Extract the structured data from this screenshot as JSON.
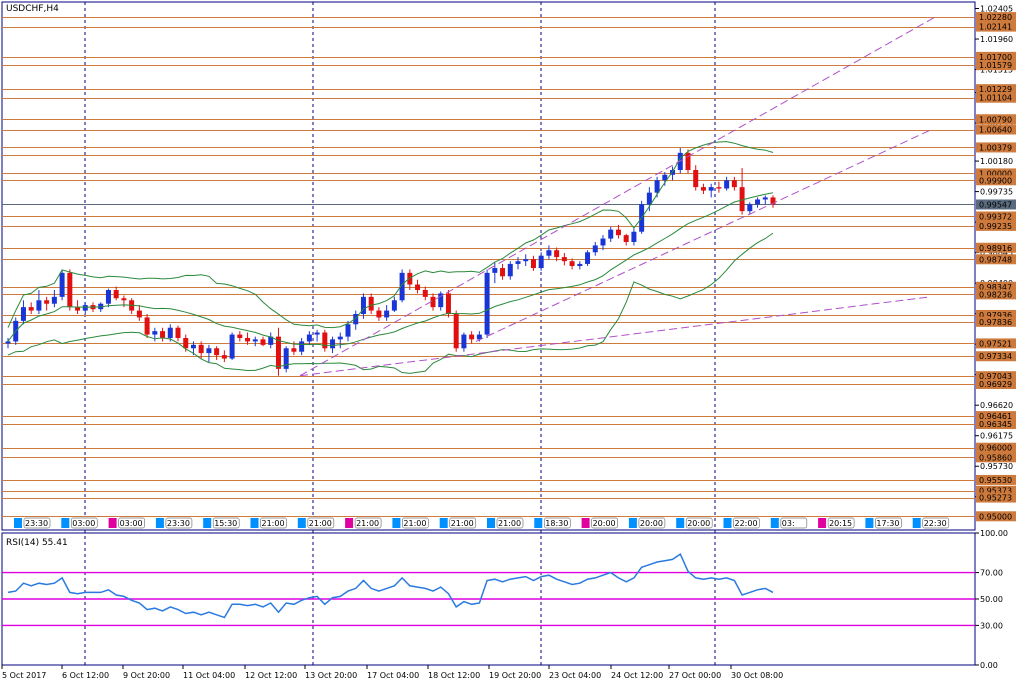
{
  "main_chart": {
    "title": "USDCHF,H4",
    "price_ticks": [
      "1.02405",
      "1.01960",
      "1.01515",
      "1.01180",
      "1.00735",
      "1.00180",
      "0.99735",
      "0.99290",
      "0.98845",
      "0.98400",
      "0.97955",
      "0.97510",
      "0.97065",
      "0.96620",
      "0.96175",
      "0.95730",
      "0.95285"
    ],
    "levels": [
      {
        "price": "1.02280",
        "tag": true
      },
      {
        "price": "1.02141",
        "tag": true
      },
      {
        "price": "1.01700",
        "tag": true
      },
      {
        "price": "1.01579",
        "tag": true
      },
      {
        "price": "1.01229",
        "tag": true
      },
      {
        "price": "1.01104",
        "tag": true
      },
      {
        "price": "1.00790",
        "tag": true
      },
      {
        "price": "1.00640",
        "tag": true
      },
      {
        "price": "1.00379",
        "tag": true
      },
      {
        "price": "1.00276",
        "tag": false
      },
      {
        "price": "1.00000",
        "tag": true
      },
      {
        "price": "0.99900",
        "tag": true
      },
      {
        "price": "0.99372",
        "tag": true
      },
      {
        "price": "0.99235",
        "tag": true
      },
      {
        "price": "0.98916",
        "tag": true
      },
      {
        "price": "0.98748",
        "tag": true
      },
      {
        "price": "0.98347",
        "tag": true
      },
      {
        "price": "0.98236",
        "tag": true
      },
      {
        "price": "0.97936",
        "tag": true
      },
      {
        "price": "0.97836",
        "tag": true
      },
      {
        "price": "0.97521",
        "tag": true
      },
      {
        "price": "0.97334",
        "tag": true
      },
      {
        "price": "0.97043",
        "tag": true
      },
      {
        "price": "0.96929",
        "tag": true
      },
      {
        "price": "0.96461",
        "tag": true
      },
      {
        "price": "0.96345",
        "tag": true
      },
      {
        "price": "0.96000",
        "tag": true
      },
      {
        "price": "0.95860",
        "tag": true
      },
      {
        "price": "0.95530",
        "tag": true
      },
      {
        "price": "0.95373",
        "tag": true
      },
      {
        "price": "0.95273",
        "tag": true
      },
      {
        "price": "0.95000",
        "tag": true
      }
    ],
    "current_price": "0.99547",
    "session_labels": [
      "23:30",
      "03:00",
      "03:00",
      "23:30",
      "15:30",
      "21:00",
      "21:00",
      "21:00",
      "21:00",
      "21:00",
      "21:00",
      "18:30",
      "20:00",
      "20:00",
      "20:00",
      "22:00",
      "03:",
      "20:15",
      "17:30",
      "22:30"
    ]
  },
  "rsi_panel": {
    "title": "RSI(14) 55.41",
    "ticks": [
      "100.00",
      "70.00",
      "50.00",
      "30.00",
      "0.00"
    ],
    "levels": [
      70,
      50,
      30
    ]
  },
  "x_axis": {
    "labels": [
      "5 Oct 2017",
      "6 Oct 12:00",
      "9 Oct 20:00",
      "11 Oct 04:00",
      "12 Oct 12:00",
      "13 Oct 20:00",
      "17 Oct 04:00",
      "18 Oct 12:00",
      "19 Oct 20:00",
      "23 Oct 04:00",
      "24 Oct 12:00",
      "27 Oct 00:00",
      "30 Oct 08:00"
    ]
  },
  "colors": {
    "bull": "#1a35d6",
    "bear": "#e01010",
    "level": "#cd7a3c",
    "tag": "#cd7a3c",
    "current": "#5a6a7e",
    "channel": "#b050c8",
    "band": "#2a8a3a",
    "rsi_line": "#2a7ae0",
    "rsi_level": "#e000e0",
    "axis": "#000080",
    "session_up": "#0090ff",
    "session_down": "#e000a0"
  },
  "chart_data": {
    "type": "candlestick",
    "symbol": "USDCHF",
    "timeframe": "H4",
    "ylim": [
      0.948,
      1.025
    ],
    "candles": [
      {
        "o": 0.9752,
        "h": 0.976,
        "l": 0.9745,
        "c": 0.9755
      },
      {
        "o": 0.9755,
        "h": 0.979,
        "l": 0.975,
        "c": 0.9785
      },
      {
        "o": 0.9785,
        "h": 0.9815,
        "l": 0.978,
        "c": 0.9805
      },
      {
        "o": 0.9805,
        "h": 0.9812,
        "l": 0.9795,
        "c": 0.98
      },
      {
        "o": 0.98,
        "h": 0.983,
        "l": 0.9795,
        "c": 0.9815
      },
      {
        "o": 0.9815,
        "h": 0.982,
        "l": 0.98,
        "c": 0.981
      },
      {
        "o": 0.981,
        "h": 0.983,
        "l": 0.9805,
        "c": 0.982
      },
      {
        "o": 0.982,
        "h": 0.986,
        "l": 0.9815,
        "c": 0.9855
      },
      {
        "o": 0.9855,
        "h": 0.986,
        "l": 0.98,
        "c": 0.9805
      },
      {
        "o": 0.9805,
        "h": 0.9815,
        "l": 0.9795,
        "c": 0.98
      },
      {
        "o": 0.98,
        "h": 0.9812,
        "l": 0.9795,
        "c": 0.9808
      },
      {
        "o": 0.9808,
        "h": 0.9812,
        "l": 0.9798,
        "c": 0.9802
      },
      {
        "o": 0.9802,
        "h": 0.9812,
        "l": 0.9798,
        "c": 0.981
      },
      {
        "o": 0.981,
        "h": 0.9832,
        "l": 0.9805,
        "c": 0.983
      },
      {
        "o": 0.983,
        "h": 0.9835,
        "l": 0.9815,
        "c": 0.9818
      },
      {
        "o": 0.9818,
        "h": 0.9822,
        "l": 0.9805,
        "c": 0.9815
      },
      {
        "o": 0.9815,
        "h": 0.9818,
        "l": 0.9795,
        "c": 0.98
      },
      {
        "o": 0.98,
        "h": 0.9808,
        "l": 0.9785,
        "c": 0.979
      },
      {
        "o": 0.979,
        "h": 0.9795,
        "l": 0.976,
        "c": 0.9765
      },
      {
        "o": 0.9765,
        "h": 0.9775,
        "l": 0.9755,
        "c": 0.977
      },
      {
        "o": 0.977,
        "h": 0.9775,
        "l": 0.9755,
        "c": 0.976
      },
      {
        "o": 0.976,
        "h": 0.978,
        "l": 0.9755,
        "c": 0.9775
      },
      {
        "o": 0.9775,
        "h": 0.9778,
        "l": 0.9755,
        "c": 0.976
      },
      {
        "o": 0.976,
        "h": 0.9765,
        "l": 0.974,
        "c": 0.9745
      },
      {
        "o": 0.9745,
        "h": 0.9755,
        "l": 0.9735,
        "c": 0.975
      },
      {
        "o": 0.975,
        "h": 0.9755,
        "l": 0.973,
        "c": 0.9738
      },
      {
        "o": 0.9738,
        "h": 0.975,
        "l": 0.9725,
        "c": 0.9745
      },
      {
        "o": 0.9745,
        "h": 0.9748,
        "l": 0.9728,
        "c": 0.9735
      },
      {
        "o": 0.9735,
        "h": 0.9742,
        "l": 0.9725,
        "c": 0.973
      },
      {
        "o": 0.973,
        "h": 0.9768,
        "l": 0.9728,
        "c": 0.9765
      },
      {
        "o": 0.9765,
        "h": 0.977,
        "l": 0.9755,
        "c": 0.976
      },
      {
        "o": 0.976,
        "h": 0.9768,
        "l": 0.975,
        "c": 0.9755
      },
      {
        "o": 0.9755,
        "h": 0.9762,
        "l": 0.9748,
        "c": 0.9758
      },
      {
        "o": 0.9758,
        "h": 0.9762,
        "l": 0.9748,
        "c": 0.975
      },
      {
        "o": 0.975,
        "h": 0.9768,
        "l": 0.9745,
        "c": 0.9762
      },
      {
        "o": 0.9762,
        "h": 0.9775,
        "l": 0.9705,
        "c": 0.9715
      },
      {
        "o": 0.9715,
        "h": 0.9748,
        "l": 0.971,
        "c": 0.9745
      },
      {
        "o": 0.9745,
        "h": 0.9755,
        "l": 0.9735,
        "c": 0.974
      },
      {
        "o": 0.974,
        "h": 0.976,
        "l": 0.9735,
        "c": 0.9755
      },
      {
        "o": 0.9755,
        "h": 0.977,
        "l": 0.975,
        "c": 0.9765
      },
      {
        "o": 0.9765,
        "h": 0.9772,
        "l": 0.9755,
        "c": 0.9768
      },
      {
        "o": 0.9768,
        "h": 0.9772,
        "l": 0.974,
        "c": 0.9745
      },
      {
        "o": 0.9745,
        "h": 0.9762,
        "l": 0.9738,
        "c": 0.9758
      },
      {
        "o": 0.9758,
        "h": 0.9768,
        "l": 0.9745,
        "c": 0.9762
      },
      {
        "o": 0.9762,
        "h": 0.9785,
        "l": 0.9755,
        "c": 0.978
      },
      {
        "o": 0.978,
        "h": 0.98,
        "l": 0.9772,
        "c": 0.9795
      },
      {
        "o": 0.9795,
        "h": 0.9825,
        "l": 0.9788,
        "c": 0.982
      },
      {
        "o": 0.982,
        "h": 0.9825,
        "l": 0.9795,
        "c": 0.98
      },
      {
        "o": 0.98,
        "h": 0.9805,
        "l": 0.9785,
        "c": 0.979
      },
      {
        "o": 0.979,
        "h": 0.9808,
        "l": 0.9785,
        "c": 0.98
      },
      {
        "o": 0.98,
        "h": 0.982,
        "l": 0.9798,
        "c": 0.9815
      },
      {
        "o": 0.9815,
        "h": 0.986,
        "l": 0.9812,
        "c": 0.9855
      },
      {
        "o": 0.9855,
        "h": 0.986,
        "l": 0.983,
        "c": 0.9838
      },
      {
        "o": 0.9838,
        "h": 0.9845,
        "l": 0.9825,
        "c": 0.983
      },
      {
        "o": 0.983,
        "h": 0.9835,
        "l": 0.9815,
        "c": 0.982
      },
      {
        "o": 0.982,
        "h": 0.9825,
        "l": 0.98,
        "c": 0.9805
      },
      {
        "o": 0.9805,
        "h": 0.9828,
        "l": 0.98,
        "c": 0.9825
      },
      {
        "o": 0.9825,
        "h": 0.983,
        "l": 0.979,
        "c": 0.9795
      },
      {
        "o": 0.9795,
        "h": 0.98,
        "l": 0.974,
        "c": 0.9745
      },
      {
        "o": 0.9745,
        "h": 0.9768,
        "l": 0.974,
        "c": 0.9765
      },
      {
        "o": 0.9765,
        "h": 0.977,
        "l": 0.9752,
        "c": 0.9758
      },
      {
        "o": 0.9758,
        "h": 0.977,
        "l": 0.9755,
        "c": 0.9765
      },
      {
        "o": 0.9765,
        "h": 0.986,
        "l": 0.976,
        "c": 0.9855
      },
      {
        "o": 0.9855,
        "h": 0.987,
        "l": 0.984,
        "c": 0.9862
      },
      {
        "o": 0.9862,
        "h": 0.9868,
        "l": 0.9845,
        "c": 0.985
      },
      {
        "o": 0.985,
        "h": 0.9872,
        "l": 0.9845,
        "c": 0.9868
      },
      {
        "o": 0.9868,
        "h": 0.9878,
        "l": 0.986,
        "c": 0.9872
      },
      {
        "o": 0.9872,
        "h": 0.9882,
        "l": 0.9865,
        "c": 0.9875
      },
      {
        "o": 0.9875,
        "h": 0.988,
        "l": 0.9858,
        "c": 0.9862
      },
      {
        "o": 0.9862,
        "h": 0.9885,
        "l": 0.9858,
        "c": 0.988
      },
      {
        "o": 0.988,
        "h": 0.9895,
        "l": 0.9875,
        "c": 0.9888
      },
      {
        "o": 0.9888,
        "h": 0.9892,
        "l": 0.9872,
        "c": 0.9878
      },
      {
        "o": 0.9878,
        "h": 0.9884,
        "l": 0.9866,
        "c": 0.9872
      },
      {
        "o": 0.9872,
        "h": 0.9876,
        "l": 0.986,
        "c": 0.9865
      },
      {
        "o": 0.9865,
        "h": 0.9872,
        "l": 0.986,
        "c": 0.9868
      },
      {
        "o": 0.9868,
        "h": 0.9888,
        "l": 0.9865,
        "c": 0.9885
      },
      {
        "o": 0.9885,
        "h": 0.99,
        "l": 0.988,
        "c": 0.9895
      },
      {
        "o": 0.9895,
        "h": 0.991,
        "l": 0.9888,
        "c": 0.9905
      },
      {
        "o": 0.9905,
        "h": 0.9922,
        "l": 0.99,
        "c": 0.9918
      },
      {
        "o": 0.9918,
        "h": 0.9925,
        "l": 0.9905,
        "c": 0.991
      },
      {
        "o": 0.991,
        "h": 0.9912,
        "l": 0.9895,
        "c": 0.99
      },
      {
        "o": 0.99,
        "h": 0.992,
        "l": 0.9895,
        "c": 0.9915
      },
      {
        "o": 0.9915,
        "h": 0.996,
        "l": 0.9912,
        "c": 0.9955
      },
      {
        "o": 0.9955,
        "h": 0.998,
        "l": 0.9945,
        "c": 0.9972
      },
      {
        "o": 0.9972,
        "h": 0.9995,
        "l": 0.9965,
        "c": 0.999
      },
      {
        "o": 0.999,
        "h": 1.0002,
        "l": 0.9982,
        "c": 0.9998
      },
      {
        "o": 0.9998,
        "h": 1.001,
        "l": 0.999,
        "c": 1.0005
      },
      {
        "o": 1.0005,
        "h": 1.0037,
        "l": 1.0,
        "c": 1.003
      },
      {
        "o": 1.003,
        "h": 1.0035,
        "l": 1.0,
        "c": 1.0005
      },
      {
        "o": 1.0005,
        "h": 1.0012,
        "l": 0.9975,
        "c": 0.998
      },
      {
        "o": 0.998,
        "h": 0.9985,
        "l": 0.997,
        "c": 0.9975
      },
      {
        "o": 0.9975,
        "h": 0.9985,
        "l": 0.9965,
        "c": 0.998
      },
      {
        "o": 0.998,
        "h": 0.9988,
        "l": 0.9972,
        "c": 0.9978
      },
      {
        "o": 0.9978,
        "h": 0.9995,
        "l": 0.9975,
        "c": 0.999
      },
      {
        "o": 0.999,
        "h": 0.9995,
        "l": 0.9975,
        "c": 0.998
      },
      {
        "o": 0.998,
        "h": 1.0008,
        "l": 0.994,
        "c": 0.9945
      },
      {
        "o": 0.9945,
        "h": 0.9958,
        "l": 0.994,
        "c": 0.9955
      },
      {
        "o": 0.9955,
        "h": 0.9965,
        "l": 0.995,
        "c": 0.9962
      },
      {
        "o": 0.9962,
        "h": 0.9968,
        "l": 0.9955,
        "c": 0.9965
      },
      {
        "o": 0.9965,
        "h": 0.9968,
        "l": 0.995,
        "c": 0.9955
      }
    ],
    "rsi": [
      55,
      56,
      62,
      60,
      62,
      61,
      62,
      66,
      55,
      54,
      55,
      55,
      55,
      57,
      53,
      52,
      49,
      47,
      42,
      43,
      41,
      44,
      42,
      39,
      40,
      38,
      40,
      38,
      36,
      46,
      46,
      45,
      46,
      44,
      47,
      40,
      47,
      46,
      49,
      51,
      52,
      46,
      51,
      52,
      56,
      58,
      64,
      58,
      56,
      58,
      60,
      66,
      60,
      59,
      58,
      56,
      59,
      54,
      44,
      48,
      46,
      47,
      64,
      65,
      63,
      65,
      66,
      67,
      64,
      67,
      68,
      65,
      63,
      61,
      62,
      65,
      66,
      68,
      70,
      66,
      63,
      66,
      74,
      76,
      78,
      79,
      80,
      84,
      71,
      66,
      65,
      66,
      65,
      66,
      64,
      53,
      55,
      57,
      58,
      55
    ]
  }
}
